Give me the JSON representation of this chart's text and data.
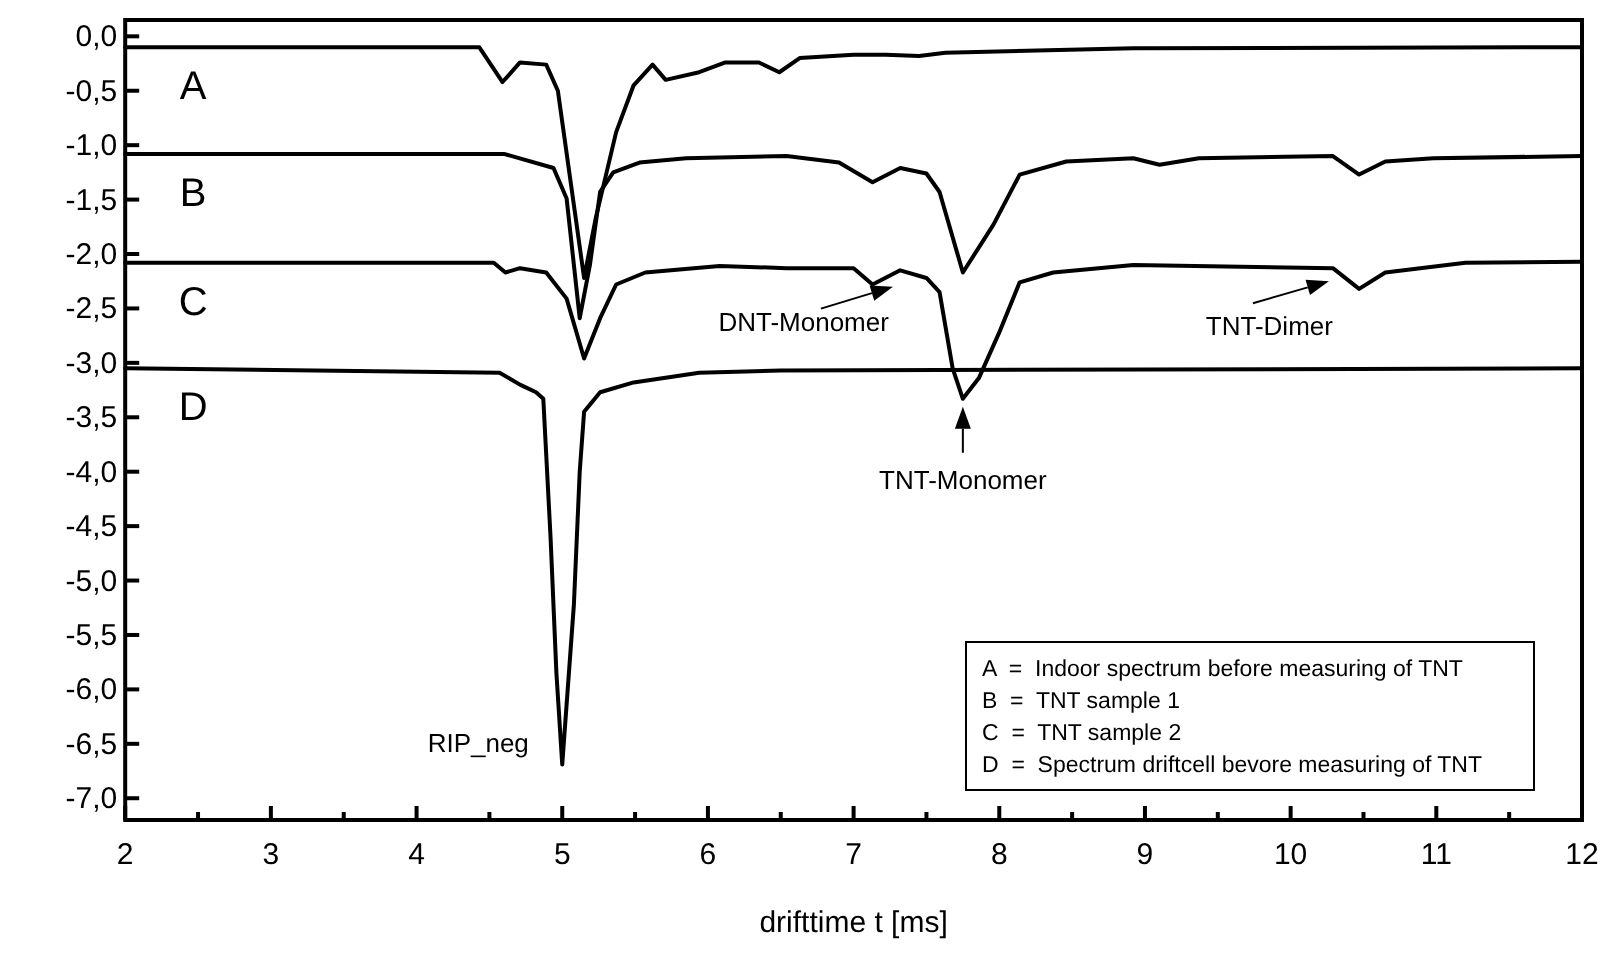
{
  "chart_data": {
    "type": "line",
    "xlabel": "drifttime t [ms]",
    "xlim": [
      2,
      12
    ],
    "ylim": [
      -7.2,
      0.15
    ],
    "xticks": [
      2,
      {
        "value": 2.5,
        "label": null
      },
      3,
      {
        "value": 3.5,
        "label": null
      },
      4,
      {
        "value": 4.5,
        "label": null
      },
      5,
      {
        "value": 5.5,
        "label": null
      },
      6,
      {
        "value": 6.5,
        "label": null
      },
      7,
      {
        "value": 7.5,
        "label": null
      },
      8,
      {
        "value": 8.5,
        "label": null
      },
      9,
      {
        "value": 9.5,
        "label": null
      },
      10,
      {
        "value": 10.5,
        "label": null
      },
      11,
      {
        "value": 11.5,
        "label": null
      },
      12
    ],
    "yticks": [
      {
        "value": 0,
        "label": "0,0"
      },
      {
        "value": -0.5,
        "label": "-0,5"
      },
      {
        "value": -1,
        "label": "-1,0"
      },
      {
        "value": -1.5,
        "label": "-1,5"
      },
      {
        "value": -2,
        "label": "-2,0"
      },
      {
        "value": -2.5,
        "label": "-2,5"
      },
      {
        "value": -3,
        "label": "-3,0"
      },
      {
        "value": -3.5,
        "label": "-3,5"
      },
      {
        "value": -4,
        "label": "-4,0"
      },
      {
        "value": -4.5,
        "label": "-4,5"
      },
      {
        "value": -5,
        "label": "-5,0"
      },
      {
        "value": -5.5,
        "label": "-5,5"
      },
      {
        "value": -6,
        "label": "-6,0"
      },
      {
        "value": -6.5,
        "label": "-6,5"
      },
      {
        "value": -7,
        "label": "-7,0"
      }
    ],
    "grid": false,
    "marker": "none",
    "line_style": "solid",
    "series": [
      {
        "name": "A",
        "color": "#000000",
        "x": [
          2,
          4.43,
          4.59,
          4.71,
          4.89,
          4.97,
          5.15,
          5.23,
          5.37,
          5.49,
          5.62,
          5.71,
          5.94,
          6.12,
          6.35,
          6.49,
          6.63,
          7.0,
          7.22,
          7.45,
          7.63,
          8.92,
          12
        ],
        "values": [
          -0.1,
          -0.1,
          -0.42,
          -0.24,
          -0.26,
          -0.5,
          -2.22,
          -1.67,
          -0.88,
          -0.45,
          -0.26,
          -0.4,
          -0.33,
          -0.24,
          -0.24,
          -0.33,
          -0.2,
          -0.17,
          -0.17,
          -0.18,
          -0.15,
          -0.11,
          -0.1
        ]
      },
      {
        "name": "B",
        "color": "#000000",
        "x": [
          2,
          4.6,
          4.94,
          5.03,
          5.12,
          5.19,
          5.26,
          5.35,
          5.53,
          5.85,
          6.54,
          6.9,
          7.13,
          7.32,
          7.5,
          7.59,
          7.75,
          7.96,
          8.14,
          8.46,
          8.92,
          9.1,
          9.37,
          10.29,
          10.47,
          10.65,
          10.98,
          12
        ],
        "values": [
          -1.08,
          -1.08,
          -1.21,
          -1.49,
          -2.59,
          -2.1,
          -1.43,
          -1.25,
          -1.16,
          -1.12,
          -1.1,
          -1.16,
          -1.34,
          -1.21,
          -1.26,
          -1.43,
          -2.17,
          -1.73,
          -1.27,
          -1.15,
          -1.12,
          -1.18,
          -1.12,
          -1.1,
          -1.27,
          -1.15,
          -1.12,
          -1.1
        ]
      },
      {
        "name": "C",
        "color": "#000000",
        "x": [
          2,
          4.53,
          4.61,
          4.71,
          4.89,
          5.03,
          5.15,
          5.26,
          5.37,
          5.57,
          6.08,
          6.54,
          7.0,
          7.13,
          7.32,
          7.5,
          7.59,
          7.68,
          7.75,
          7.86,
          8.0,
          8.14,
          8.37,
          8.92,
          10.29,
          10.47,
          10.65,
          11.2,
          12
        ],
        "values": [
          -2.08,
          -2.08,
          -2.17,
          -2.13,
          -2.17,
          -2.41,
          -2.96,
          -2.59,
          -2.28,
          -2.17,
          -2.11,
          -2.13,
          -2.13,
          -2.28,
          -2.15,
          -2.22,
          -2.35,
          -3.05,
          -3.33,
          -3.14,
          -2.72,
          -2.26,
          -2.17,
          -2.1,
          -2.13,
          -2.32,
          -2.17,
          -2.08,
          -2.07
        ]
      },
      {
        "name": "D",
        "color": "#000000",
        "x": [
          2,
          4.57,
          4.71,
          4.82,
          4.87,
          4.92,
          4.96,
          5.0,
          5.08,
          5.12,
          5.15,
          5.26,
          5.49,
          5.94,
          6.5,
          12
        ],
        "values": [
          -3.05,
          -3.09,
          -3.2,
          -3.27,
          -3.33,
          -4.61,
          -5.85,
          -6.69,
          -5.22,
          -4.0,
          -3.45,
          -3.27,
          -3.18,
          -3.09,
          -3.07,
          -3.05
        ]
      }
    ],
    "annotations": [
      {
        "text": "DNT-Monomer",
        "x": 7.27,
        "y": -2.3
      },
      {
        "text": "TNT-Monomer",
        "x": 7.75,
        "y": -3.33
      },
      {
        "text": "TNT-Dimer",
        "x": 10.4,
        "y": -2.25
      },
      {
        "text": "RIP_neg",
        "x": 5.0,
        "y": -6.69
      },
      "A  =  Indoor spectrum before measuring of TNT",
      "B  =  TNT sample 1",
      "C  =  TNT sample 2",
      "D  =  Spectrum driftcell bevore measuring of TNT"
    ]
  }
}
